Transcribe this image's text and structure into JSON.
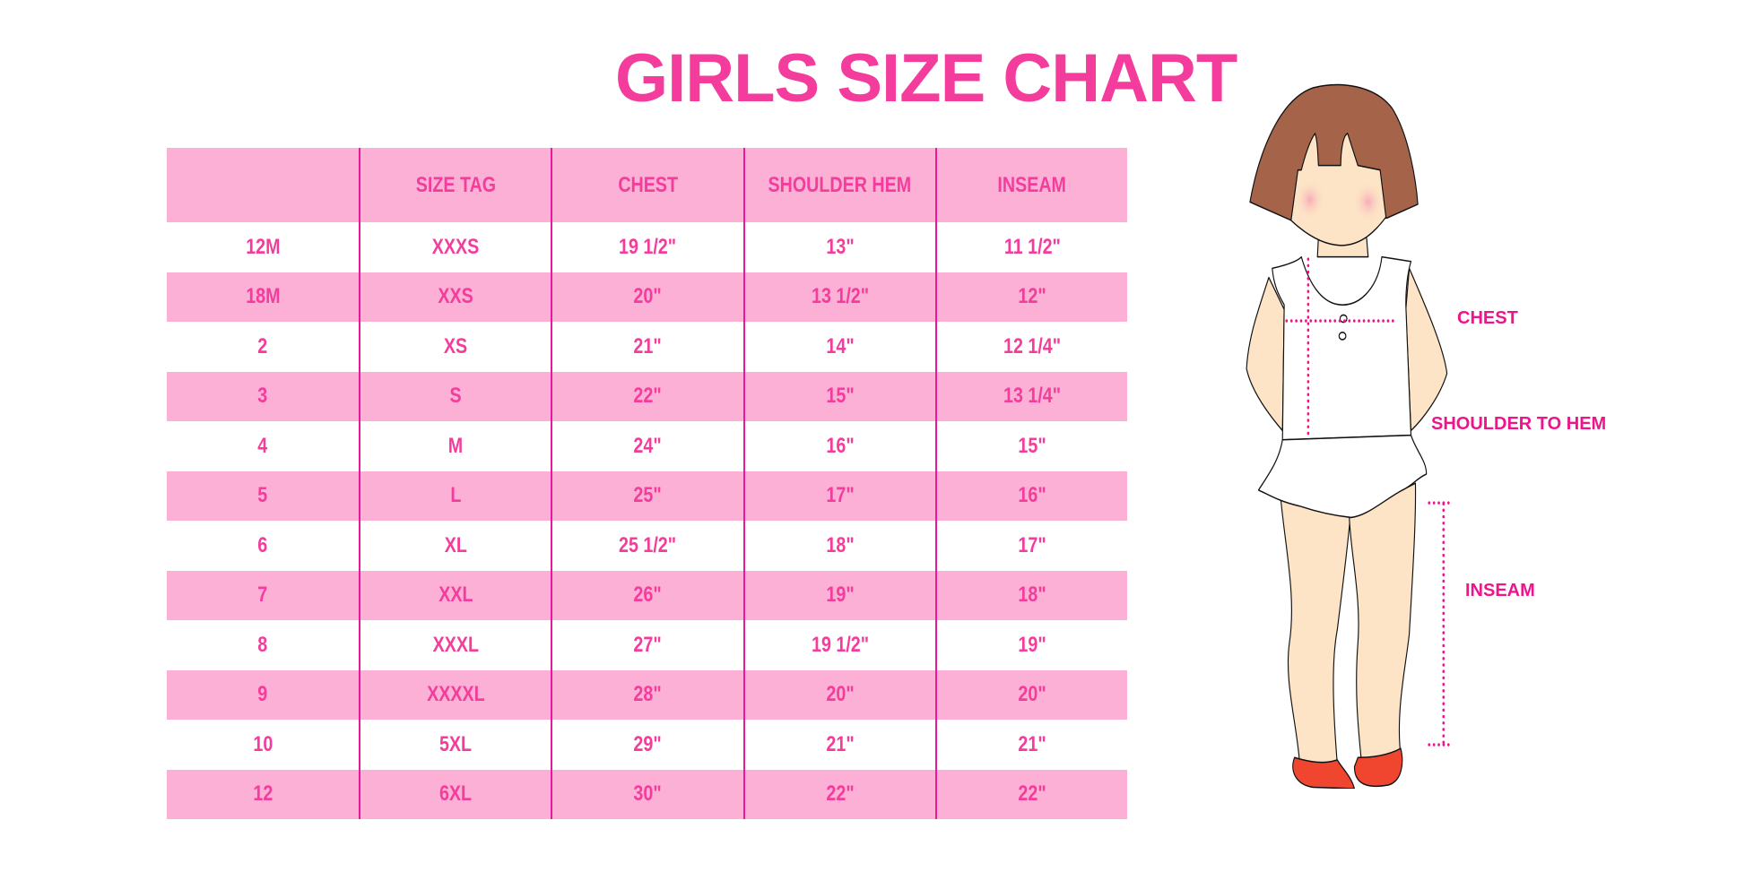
{
  "title": "GIRLS SIZE CHART",
  "table": {
    "headers": [
      "",
      "SIZE TAG",
      "CHEST",
      "SHOULDER HEM",
      "INSEAM"
    ],
    "rows": [
      [
        "12M",
        "XXXS",
        "19 1/2\"",
        "13\"",
        "11 1/2\""
      ],
      [
        "18M",
        "XXS",
        "20\"",
        "13 1/2\"",
        "12\""
      ],
      [
        "2",
        "XS",
        "21\"",
        "14\"",
        "12 1/4\""
      ],
      [
        "3",
        "S",
        "22\"",
        "15\"",
        "13 1/4\""
      ],
      [
        "4",
        "M",
        "24\"",
        "16\"",
        "15\""
      ],
      [
        "5",
        "L",
        "25\"",
        "17\"",
        "16\""
      ],
      [
        "6",
        "XL",
        "25 1/2\"",
        "18\"",
        "17\""
      ],
      [
        "7",
        "XXL",
        "26\"",
        "19\"",
        "18\""
      ],
      [
        "8",
        "XXXL",
        "27\"",
        "19 1/2\"",
        "19\""
      ],
      [
        "9",
        "XXXXL",
        "28\"",
        "20\"",
        "20\""
      ],
      [
        "10",
        "5XL",
        "29\"",
        "21\"",
        "21\""
      ],
      [
        "12",
        "6XL",
        "30\"",
        "22\"",
        "22\""
      ]
    ]
  },
  "illustration": {
    "labels": {
      "chest": "CHEST",
      "shoulder_to_hem": "SHOULDER TO HEM",
      "inseam": "INSEAM"
    }
  },
  "colors": {
    "text_pink": "#f43c9c",
    "header_bg": "#fcb0d5",
    "divider": "#e8189a",
    "measure_pink": "#f0148c"
  }
}
